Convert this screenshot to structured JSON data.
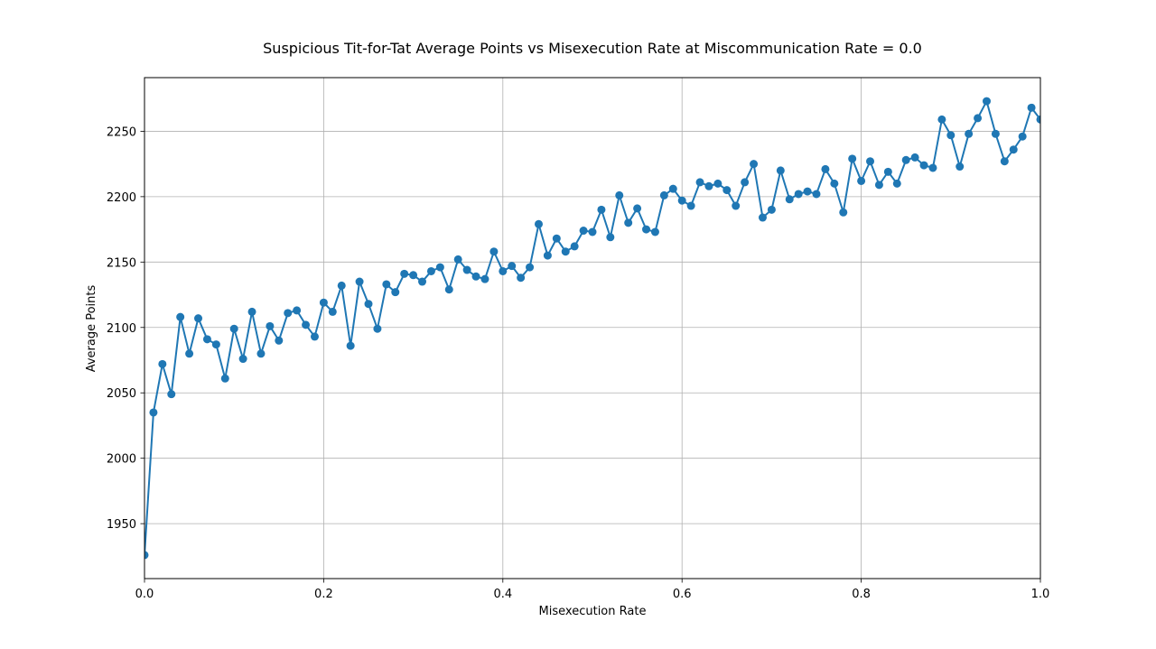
{
  "chart_data": {
    "type": "line",
    "title": "Suspicious Tit-for-Tat Average Points vs Misexecution Rate at Miscommunication Rate = 0.0",
    "xlabel": "Misexecution Rate",
    "ylabel": "Average Points",
    "xlim": [
      0.0,
      1.0
    ],
    "ylim": [
      1908,
      2291
    ],
    "xticks": [
      0.0,
      0.2,
      0.4,
      0.6,
      0.8,
      1.0
    ],
    "xtick_labels": [
      "0.0",
      "0.2",
      "0.4",
      "0.6",
      "0.8",
      "1.0"
    ],
    "yticks": [
      1950,
      2000,
      2050,
      2100,
      2150,
      2200,
      2250
    ],
    "ytick_labels": [
      "1950",
      "2000",
      "2050",
      "2100",
      "2150",
      "2200",
      "2250"
    ],
    "grid": true,
    "series": [
      {
        "color": "#1f77b4",
        "marker": "circle",
        "x": [
          0.0,
          0.01,
          0.02,
          0.03,
          0.04,
          0.05,
          0.06,
          0.07,
          0.08,
          0.09,
          0.1,
          0.11,
          0.12,
          0.13,
          0.14,
          0.15,
          0.16,
          0.17,
          0.18,
          0.19,
          0.2,
          0.21,
          0.22,
          0.23,
          0.24,
          0.25,
          0.26,
          0.27,
          0.28,
          0.29,
          0.3,
          0.31,
          0.32,
          0.33,
          0.34,
          0.35,
          0.36,
          0.37,
          0.38,
          0.39,
          0.4,
          0.41,
          0.42,
          0.43,
          0.44,
          0.45,
          0.46,
          0.47,
          0.48,
          0.49,
          0.5,
          0.51,
          0.52,
          0.53,
          0.54,
          0.55,
          0.56,
          0.57,
          0.58,
          0.59,
          0.6,
          0.61,
          0.62,
          0.63,
          0.64,
          0.65,
          0.66,
          0.67,
          0.68,
          0.69,
          0.7,
          0.71,
          0.72,
          0.73,
          0.74,
          0.75,
          0.76,
          0.77,
          0.78,
          0.79,
          0.8,
          0.81,
          0.82,
          0.83,
          0.84,
          0.85,
          0.86,
          0.87,
          0.88,
          0.89,
          0.9,
          0.91,
          0.92,
          0.93,
          0.94,
          0.95,
          0.96,
          0.97,
          0.98,
          0.99,
          1.0
        ],
        "y": [
          1926,
          2035,
          2072,
          2049,
          2108,
          2080,
          2107,
          2091,
          2087,
          2061,
          2099,
          2076,
          2112,
          2080,
          2101,
          2090,
          2111,
          2113,
          2102,
          2093,
          2119,
          2112,
          2132,
          2086,
          2135,
          2118,
          2099,
          2133,
          2127,
          2141,
          2140,
          2135,
          2143,
          2146,
          2129,
          2152,
          2144,
          2139,
          2137,
          2158,
          2143,
          2147,
          2138,
          2146,
          2179,
          2155,
          2168,
          2158,
          2162,
          2174,
          2173,
          2190,
          2169,
          2201,
          2180,
          2191,
          2175,
          2173,
          2201,
          2206,
          2197,
          2193,
          2211,
          2208,
          2210,
          2205,
          2193,
          2211,
          2225,
          2184,
          2190,
          2220,
          2198,
          2202,
          2204,
          2202,
          2221,
          2210,
          2188,
          2229,
          2212,
          2227,
          2209,
          2219,
          2210,
          2228,
          2230,
          2224,
          2222,
          2259,
          2247,
          2223,
          2248,
          2260,
          2273,
          2248,
          2227,
          2236,
          2246,
          2268,
          2259
        ]
      }
    ]
  }
}
